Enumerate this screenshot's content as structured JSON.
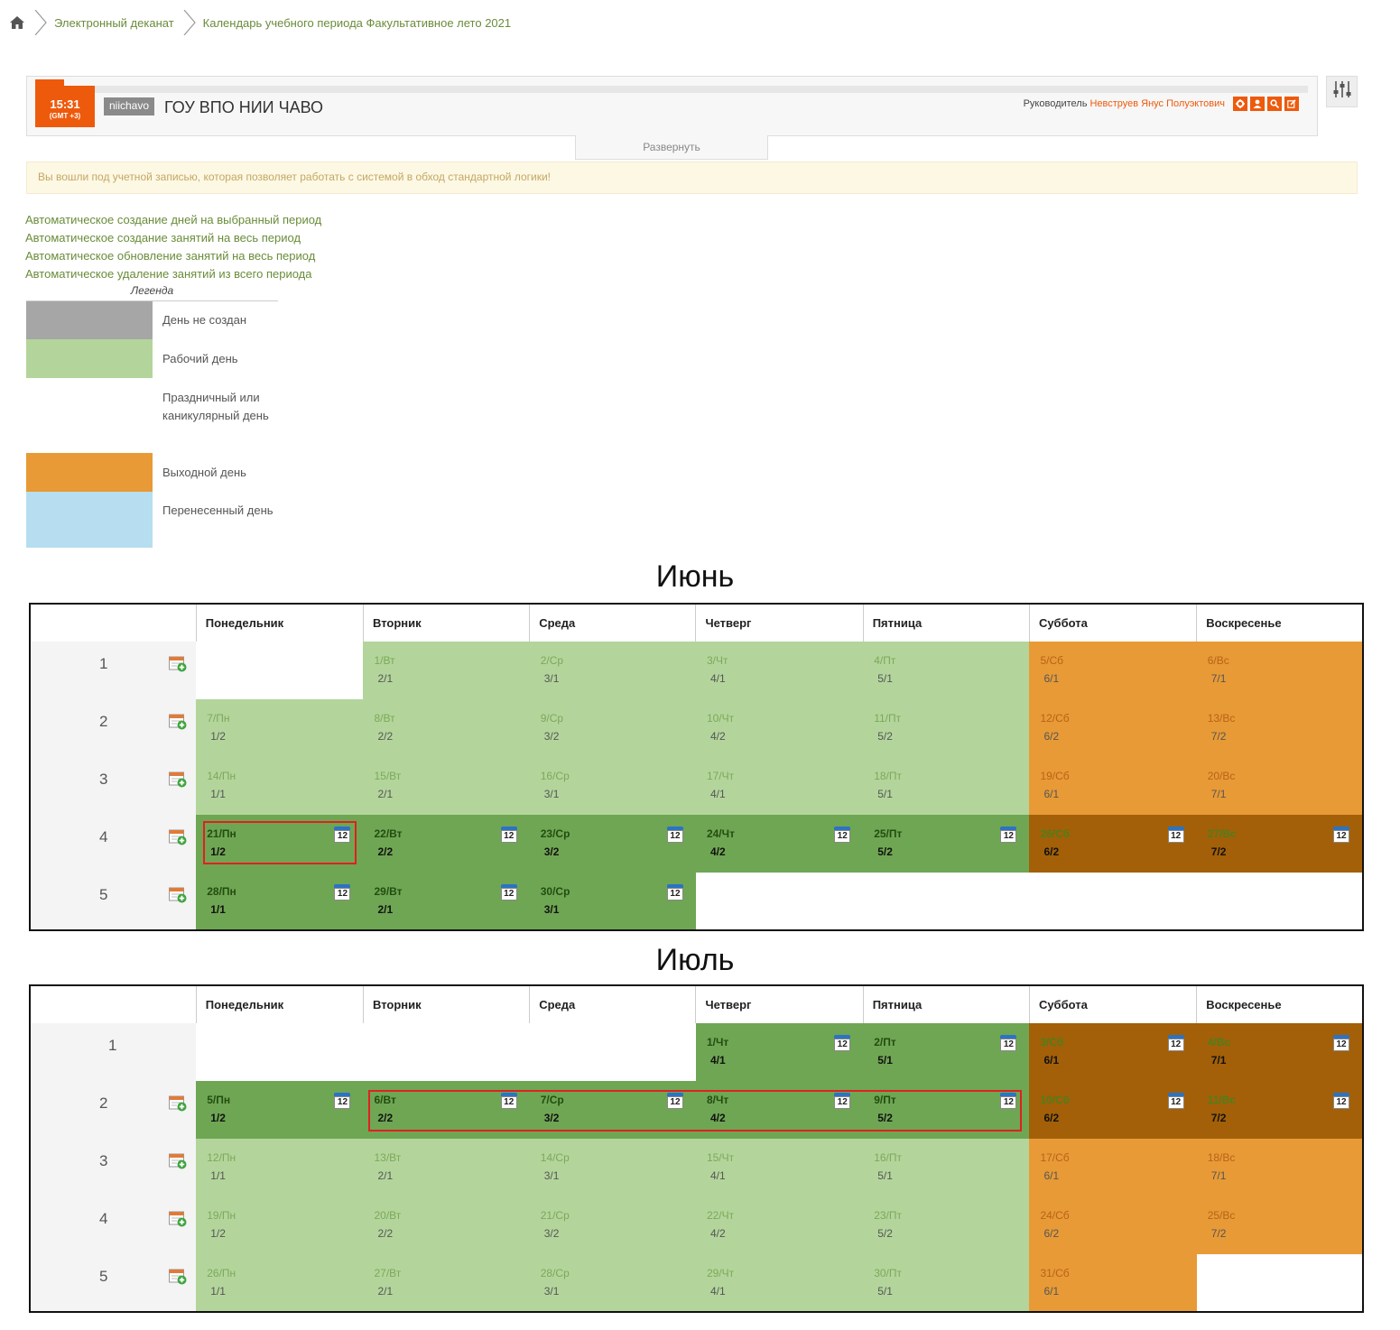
{
  "breadcrumb": {
    "items": [
      "Электронный деканат",
      "Календарь учебного периода Факультативное лето 2021"
    ]
  },
  "header": {
    "time": "15:31",
    "tz": "(GMT +3)",
    "org_code": "niichavo",
    "org_name": "ГОУ ВПО НИИ ЧАВО",
    "head_label": "Руководитель",
    "head_name": "Невструев Янус Полуэктович",
    "expand_label": "Развернуть"
  },
  "warning": "Вы вошли под учетной записью, которая позволяет работать с системой в обход стандартной логики!",
  "links": [
    "Автоматическое создание дней на выбранный период",
    "Автоматическое создание занятий на весь период",
    "Автоматическое обновление занятий на весь период",
    "Автоматическое удаление занятий из всего периода"
  ],
  "legend": {
    "title": "Легенда",
    "items": [
      {
        "label": "День не создан",
        "color": "#a6a6a6"
      },
      {
        "label": "Рабочий день",
        "color": "#b3d59b"
      },
      {
        "label": "Праздничный или каникулярный день",
        "color": "#ffffff"
      },
      {
        "label": "Выходной день",
        "color": "#e89a36"
      },
      {
        "label": "Перенесенный день",
        "color": "#b6def0"
      }
    ]
  },
  "weekdays": [
    "Понедельник",
    "Вторник",
    "Среда",
    "Четверг",
    "Пятница",
    "Суббота",
    "Воскресенье"
  ],
  "calendar_icon_text": "12",
  "months": [
    {
      "name": "Июнь",
      "weeks": [
        {
          "num": "1",
          "add": true,
          "days": [
            null,
            {
              "d": "1/Вт",
              "w": "2/1",
              "c": "g1"
            },
            {
              "d": "2/Ср",
              "w": "3/1",
              "c": "g1"
            },
            {
              "d": "3/Чт",
              "w": "4/1",
              "c": "g1"
            },
            {
              "d": "4/Пт",
              "w": "5/1",
              "c": "g1"
            },
            {
              "d": "5/Сб",
              "w": "6/1",
              "c": "o1"
            },
            {
              "d": "6/Вс",
              "w": "7/1",
              "c": "o1"
            }
          ]
        },
        {
          "num": "2",
          "add": true,
          "days": [
            {
              "d": "7/Пн",
              "w": "1/2",
              "c": "g1"
            },
            {
              "d": "8/Вт",
              "w": "2/2",
              "c": "g1"
            },
            {
              "d": "9/Ср",
              "w": "3/2",
              "c": "g1"
            },
            {
              "d": "10/Чт",
              "w": "4/2",
              "c": "g1"
            },
            {
              "d": "11/Пт",
              "w": "5/2",
              "c": "g1"
            },
            {
              "d": "12/Сб",
              "w": "6/2",
              "c": "o1"
            },
            {
              "d": "13/Вс",
              "w": "7/2",
              "c": "o1"
            }
          ]
        },
        {
          "num": "3",
          "add": true,
          "days": [
            {
              "d": "14/Пн",
              "w": "1/1",
              "c": "g1"
            },
            {
              "d": "15/Вт",
              "w": "2/1",
              "c": "g1"
            },
            {
              "d": "16/Ср",
              "w": "3/1",
              "c": "g1"
            },
            {
              "d": "17/Чт",
              "w": "4/1",
              "c": "g1"
            },
            {
              "d": "18/Пт",
              "w": "5/1",
              "c": "g1"
            },
            {
              "d": "19/Сб",
              "w": "6/1",
              "c": "o1"
            },
            {
              "d": "20/Вс",
              "w": "7/1",
              "c": "o1"
            }
          ]
        },
        {
          "num": "4",
          "add": true,
          "days": [
            {
              "d": "21/Пн",
              "w": "1/2",
              "c": "g2",
              "i": true
            },
            {
              "d": "22/Вт",
              "w": "2/2",
              "c": "g2",
              "i": true
            },
            {
              "d": "23/Ср",
              "w": "3/2",
              "c": "g2",
              "i": true
            },
            {
              "d": "24/Чт",
              "w": "4/2",
              "c": "g2",
              "i": true
            },
            {
              "d": "25/Пт",
              "w": "5/2",
              "c": "g2",
              "i": true
            },
            {
              "d": "26/Сб",
              "w": "6/2",
              "c": "o2",
              "i": true
            },
            {
              "d": "27/Вс",
              "w": "7/2",
              "c": "o2",
              "i": true
            }
          ]
        },
        {
          "num": "5",
          "add": true,
          "days": [
            {
              "d": "28/Пн",
              "w": "1/1",
              "c": "g2",
              "i": true
            },
            {
              "d": "29/Вт",
              "w": "2/1",
              "c": "g2",
              "i": true
            },
            {
              "d": "30/Ср",
              "w": "3/1",
              "c": "g2",
              "i": true
            },
            null,
            null,
            null,
            null
          ]
        }
      ]
    },
    {
      "name": "Июль",
      "weeks": [
        {
          "num": "1",
          "add": false,
          "days": [
            null,
            null,
            null,
            {
              "d": "1/Чт",
              "w": "4/1",
              "c": "g2",
              "i": true
            },
            {
              "d": "2/Пт",
              "w": "5/1",
              "c": "g2",
              "i": true
            },
            {
              "d": "3/Сб",
              "w": "6/1",
              "c": "o2",
              "i": true
            },
            {
              "d": "4/Вс",
              "w": "7/1",
              "c": "o2",
              "i": true
            }
          ]
        },
        {
          "num": "2",
          "add": true,
          "days": [
            {
              "d": "5/Пн",
              "w": "1/2",
              "c": "g2",
              "i": true
            },
            {
              "d": "6/Вт",
              "w": "2/2",
              "c": "g2",
              "i": true
            },
            {
              "d": "7/Ср",
              "w": "3/2",
              "c": "g2",
              "i": true
            },
            {
              "d": "8/Чт",
              "w": "4/2",
              "c": "g2",
              "i": true
            },
            {
              "d": "9/Пт",
              "w": "5/2",
              "c": "g2",
              "i": true
            },
            {
              "d": "10/Сб",
              "w": "6/2",
              "c": "o2",
              "i": true
            },
            {
              "d": "11/Вс",
              "w": "7/2",
              "c": "o2",
              "i": true
            }
          ]
        },
        {
          "num": "3",
          "add": true,
          "days": [
            {
              "d": "12/Пн",
              "w": "1/1",
              "c": "g1"
            },
            {
              "d": "13/Вт",
              "w": "2/1",
              "c": "g1"
            },
            {
              "d": "14/Ср",
              "w": "3/1",
              "c": "g1"
            },
            {
              "d": "15/Чт",
              "w": "4/1",
              "c": "g1"
            },
            {
              "d": "16/Пт",
              "w": "5/1",
              "c": "g1"
            },
            {
              "d": "17/Сб",
              "w": "6/1",
              "c": "o1"
            },
            {
              "d": "18/Вс",
              "w": "7/1",
              "c": "o1"
            }
          ]
        },
        {
          "num": "4",
          "add": true,
          "days": [
            {
              "d": "19/Пн",
              "w": "1/2",
              "c": "g1"
            },
            {
              "d": "20/Вт",
              "w": "2/2",
              "c": "g1"
            },
            {
              "d": "21/Ср",
              "w": "3/2",
              "c": "g1"
            },
            {
              "d": "22/Чт",
              "w": "4/2",
              "c": "g1"
            },
            {
              "d": "23/Пт",
              "w": "5/2",
              "c": "g1"
            },
            {
              "d": "24/Сб",
              "w": "6/2",
              "c": "o1"
            },
            {
              "d": "25/Вс",
              "w": "7/2",
              "c": "o1"
            }
          ]
        },
        {
          "num": "5",
          "add": true,
          "days": [
            {
              "d": "26/Пн",
              "w": "1/1",
              "c": "g1"
            },
            {
              "d": "27/Вт",
              "w": "2/1",
              "c": "g1"
            },
            {
              "d": "28/Ср",
              "w": "3/1",
              "c": "g1"
            },
            {
              "d": "29/Чт",
              "w": "4/1",
              "c": "g1"
            },
            {
              "d": "30/Пт",
              "w": "5/1",
              "c": "g1"
            },
            {
              "d": "31/Сб",
              "w": "6/1",
              "c": "o1"
            },
            null
          ]
        }
      ]
    }
  ],
  "icons": {
    "home": "home-icon",
    "breadcrumb_sep": "chevron-right-icon",
    "settings": "sliders-icon",
    "add_day": "calendar-add-icon",
    "calendar": "calendar-icon"
  }
}
